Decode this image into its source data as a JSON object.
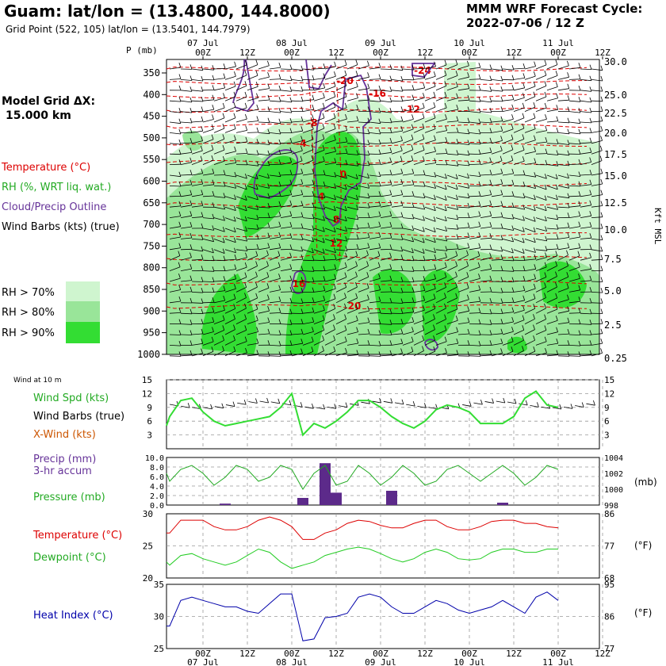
{
  "header": {
    "title": "Guam:  lat/lon = (13.4800, 144.8000)",
    "grid_point": "Grid Point (522, 105) lat/lon = (13.5401, 144.7979)",
    "cycle_label": "MMM WRF Forecast Cycle:",
    "cycle_value": "2022-07-06 / 12  Z",
    "model_grid_label": "Model Grid ΔX:",
    "model_grid_value": "15.000 km"
  },
  "legend": {
    "temperature": "Temperature (°C)",
    "rh": "RH (%, WRT liq. wat.)",
    "cloud": "Cloud/Precip Outline",
    "barbs": "Wind Barbs (kts) (true)",
    "rh_levels": [
      "RH > 70%",
      "RH > 80%",
      "RH > 90%"
    ],
    "rh_colors": [
      "#cff5cf",
      "#99e599",
      "#33dd33"
    ]
  },
  "colors": {
    "temperature": "#dd0000",
    "rh": "#22aa22",
    "cloud": "#663399",
    "wind_green": "#33dd33",
    "precip_bar": "#5c2a8a",
    "heat_index": "#0000aa",
    "label_orange": "#cc5500"
  },
  "time_axis": {
    "top_dates": [
      "07 Jul",
      "08 Jul",
      "09 Jul",
      "10 Jul",
      "11 Jul"
    ],
    "bottom_dates": [
      "07 Jul",
      "08 Jul",
      "09 Jul",
      "10 Jul",
      "11 Jul"
    ],
    "hours": [
      "00Z",
      "12Z",
      "00Z",
      "12Z",
      "00Z",
      "12Z",
      "00Z",
      "12Z",
      "00Z",
      "12Z"
    ]
  },
  "cross_section": {
    "p_label": "P (mb)",
    "pressure_levels": [
      "350",
      "400",
      "450",
      "500",
      "550",
      "600",
      "650",
      "700",
      "750",
      "800",
      "850",
      "900",
      "950",
      "1000"
    ],
    "height_levels": [
      "30.0",
      "25.0",
      "22.5",
      "20.0",
      "17.5",
      "15.0",
      "12.5",
      "10.0",
      "7.5",
      "5.0",
      "2.5",
      "0.25"
    ],
    "height_label": "Kft MSL",
    "temp_contour_labels": [
      "-24",
      "-20",
      "-16",
      "-12",
      "-8",
      "-4",
      "0",
      "4",
      "8",
      "12",
      "16",
      "20"
    ]
  },
  "panels": {
    "wind": {
      "header": "Wind at 10 m",
      "labels": [
        "Wind Spd (kts)",
        "Wind Barbs (true)",
        "X-Wind (kts)"
      ],
      "yticks": [
        "15",
        "12",
        "9",
        "6",
        "3"
      ]
    },
    "precip": {
      "labels": [
        "Precip (mm)",
        "3-hr accum",
        "Pressure (mb)"
      ],
      "left_ticks": [
        "10.0",
        "8.0",
        "6.0",
        "4.0",
        "2.0",
        "0.0"
      ],
      "right_ticks": [
        "1004",
        "1002",
        "1000",
        "998"
      ],
      "unit": "(mb)"
    },
    "temp": {
      "labels": [
        "Temperature (°C)",
        "Dewpoint (°C)"
      ],
      "left_ticks": [
        "30",
        "25",
        "20"
      ],
      "right_ticks": [
        "86",
        "77",
        "68"
      ],
      "unit": "(°F)"
    },
    "heat": {
      "labels": [
        "Heat Index (°C)"
      ],
      "left_ticks": [
        "35",
        "30",
        "25"
      ],
      "right_ticks": [
        "95",
        "86",
        "77"
      ],
      "unit": "(°F)"
    }
  },
  "chart_data": [
    {
      "type": "line",
      "name": "10 m wind",
      "x_hours": [
        0,
        3,
        6,
        9,
        12,
        15,
        18,
        21,
        24,
        27,
        30,
        33,
        36,
        39,
        42,
        45,
        48,
        51,
        54,
        57,
        60,
        63,
        66,
        69,
        72,
        75,
        78,
        81,
        84,
        87,
        90,
        93,
        96,
        99,
        102,
        105,
        108
      ],
      "series": [
        {
          "name": "Wind Spd (kts)",
          "values": [
            5,
            7,
            10.5,
            11,
            8,
            6,
            5,
            5.5,
            6,
            6.5,
            7,
            9,
            12,
            3,
            5.5,
            4.5,
            6,
            8,
            10.5,
            10.5,
            9,
            7,
            5.5,
            4.5,
            6,
            8.5,
            9.5,
            9,
            8,
            5.5,
            5.5,
            5.5,
            7,
            11,
            12.5,
            9.5,
            9
          ]
        }
      ],
      "ylim": [
        0,
        15
      ]
    },
    {
      "type": "bar",
      "name": "3-hr precip and pressure",
      "bar_hours": [
        6,
        27,
        33,
        36,
        51,
        81
      ],
      "precip_mm": [
        0.3,
        1.5,
        8.8,
        2.6,
        3.0,
        0.5
      ],
      "precip_ylim": [
        0,
        10
      ],
      "x_hours": [
        -12,
        -9,
        -6,
        -3,
        0,
        3,
        6,
        9,
        12,
        15,
        18,
        21,
        24,
        27,
        30,
        33,
        36,
        39,
        42,
        45,
        48,
        51,
        54,
        57,
        60,
        63,
        66,
        69,
        72,
        75,
        78,
        81,
        84,
        87,
        90,
        93,
        96
      ],
      "series": [
        {
          "name": "Pressure (mb)",
          "values": [
            1002.0,
            1001.0,
            1002.5,
            1003.0,
            1002.0,
            1000.5,
            1001.5,
            1003.0,
            1002.5,
            1001.0,
            1001.5,
            1003.0,
            1002.5,
            1000.0,
            1002.0,
            1003.0,
            1000.5,
            1001.0,
            1003.0,
            1002.0,
            1000.5,
            1001.5,
            1003.0,
            1002.0,
            1000.5,
            1001.0,
            1002.5,
            1003.0,
            1002.0,
            1001.0,
            1002.0,
            1003.0,
            1002.0,
            1000.5,
            1001.5,
            1003.0,
            1002.5
          ]
        }
      ],
      "pressure_ylim": [
        998,
        1004
      ]
    },
    {
      "type": "line",
      "name": "temperature and dewpoint",
      "x_hours": [
        -12,
        -9,
        -6,
        -3,
        0,
        3,
        6,
        9,
        12,
        15,
        18,
        21,
        24,
        27,
        30,
        33,
        36,
        39,
        42,
        45,
        48,
        51,
        54,
        57,
        60,
        63,
        66,
        69,
        72,
        75,
        78,
        81,
        84,
        87,
        90,
        93,
        96
      ],
      "series": [
        {
          "name": "Temperature (°C)",
          "values": [
            27.0,
            27.0,
            29.0,
            29.0,
            29.0,
            28.0,
            27.5,
            27.5,
            28.0,
            29.0,
            29.5,
            29.0,
            28.0,
            26.0,
            26.0,
            27.0,
            27.5,
            28.5,
            29.0,
            28.8,
            28.2,
            27.8,
            27.8,
            28.5,
            29.0,
            29.0,
            28.0,
            27.5,
            27.5,
            28.0,
            28.8,
            29.0,
            29.0,
            28.5,
            28.5,
            28.0,
            27.8
          ]
        },
        {
          "name": "Dewpoint (°C)",
          "values": [
            22.5,
            22.0,
            23.5,
            23.8,
            23.0,
            22.5,
            22.0,
            22.5,
            23.5,
            24.5,
            24.0,
            22.5,
            21.5,
            22.0,
            22.5,
            23.5,
            24.0,
            24.5,
            24.8,
            24.5,
            23.8,
            23.0,
            22.5,
            23.0,
            24.0,
            24.5,
            24.0,
            23.0,
            22.8,
            23.0,
            24.0,
            24.5,
            24.5,
            24.0,
            24.0,
            24.5,
            24.5
          ]
        }
      ],
      "ylim": [
        20,
        30
      ]
    },
    {
      "type": "line",
      "name": "heat index",
      "x_hours": [
        -12,
        -9,
        -6,
        -3,
        0,
        3,
        6,
        9,
        12,
        15,
        18,
        21,
        24,
        27,
        30,
        33,
        36,
        39,
        42,
        45,
        48,
        51,
        54,
        57,
        60,
        63,
        66,
        69,
        72,
        75,
        78,
        81,
        84,
        87,
        90,
        93,
        96
      ],
      "series": [
        {
          "name": "Heat Index (°C)",
          "values": [
            28.5,
            28.5,
            32.5,
            33.0,
            32.5,
            32.0,
            31.5,
            31.5,
            30.8,
            30.5,
            32.0,
            33.5,
            33.5,
            26.2,
            26.5,
            29.8,
            30.0,
            30.5,
            33.0,
            33.5,
            33.0,
            31.5,
            30.5,
            30.5,
            31.5,
            32.5,
            32.0,
            31.0,
            30.5,
            31.0,
            31.5,
            32.5,
            31.5,
            30.5,
            33.0,
            33.8,
            32.5
          ]
        }
      ],
      "ylim": [
        25,
        35
      ]
    }
  ]
}
